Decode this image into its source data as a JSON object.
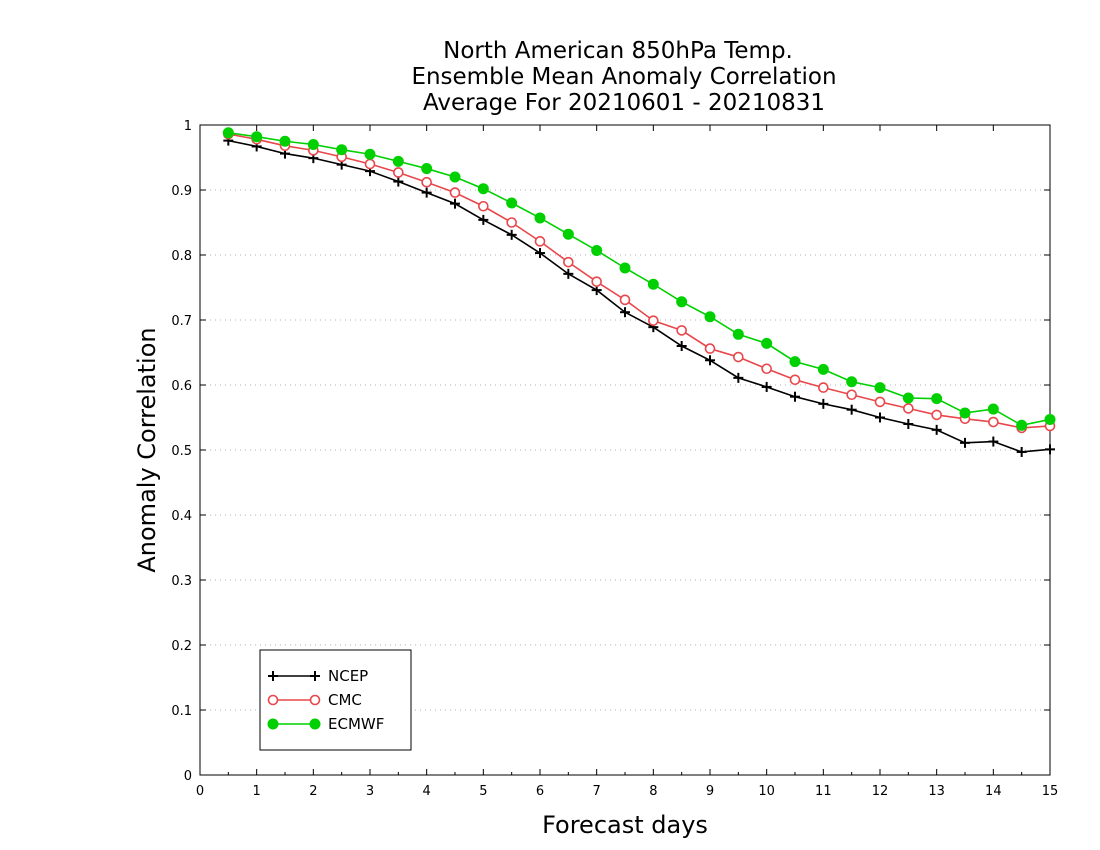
{
  "chart_data": {
    "type": "line",
    "title_lines": [
      "North American 850hPa Temp.",
      "Ensemble Mean Anomaly Correlation",
      "Average For 20210601 - 20210831"
    ],
    "xlabel": "Forecast days",
    "ylabel": "Anomaly Correlation",
    "xlim": [
      0,
      15
    ],
    "ylim": [
      0,
      1
    ],
    "x_ticks": [
      "0",
      "1",
      "2",
      "3",
      "4",
      "5",
      "6",
      "7",
      "8",
      "9",
      "10",
      "11",
      "12",
      "13",
      "14",
      "15"
    ],
    "y_ticks": [
      "0",
      "0.1",
      "0.2",
      "0.3",
      "0.4",
      "0.5",
      "0.6",
      "0.7",
      "0.8",
      "0.9",
      "1"
    ],
    "grid": "horizontal dotted",
    "legend_position": "bottom-left",
    "x": [
      0.5,
      1,
      1.5,
      2,
      2.5,
      3,
      3.5,
      4,
      4.5,
      5,
      5.5,
      6,
      6.5,
      7,
      7.5,
      8,
      8.5,
      9,
      9.5,
      10,
      10.5,
      11,
      11.5,
      12,
      12.5,
      13,
      13.5,
      14,
      14.5,
      15
    ],
    "series": [
      {
        "name": "NCEP",
        "color": "#000000",
        "marker": "plus",
        "values": [
          0.976,
          0.967,
          0.956,
          0.949,
          0.939,
          0.929,
          0.913,
          0.896,
          0.879,
          0.854,
          0.831,
          0.803,
          0.771,
          0.746,
          0.712,
          0.689,
          0.66,
          0.638,
          0.611,
          0.597,
          0.582,
          0.571,
          0.562,
          0.55,
          0.54,
          0.531,
          0.511,
          0.513,
          0.497,
          0.501
        ]
      },
      {
        "name": "CMC",
        "color": "#e8474b",
        "marker": "open-circle",
        "values": [
          0.986,
          0.978,
          0.968,
          0.961,
          0.951,
          0.94,
          0.927,
          0.912,
          0.896,
          0.875,
          0.85,
          0.821,
          0.789,
          0.759,
          0.731,
          0.699,
          0.684,
          0.656,
          0.643,
          0.625,
          0.608,
          0.596,
          0.585,
          0.574,
          0.564,
          0.554,
          0.548,
          0.543,
          0.534,
          0.537
        ]
      },
      {
        "name": "ECMWF",
        "color": "#00d000",
        "marker": "filled-circle",
        "values": [
          0.988,
          0.982,
          0.975,
          0.97,
          0.962,
          0.955,
          0.944,
          0.933,
          0.92,
          0.902,
          0.88,
          0.857,
          0.832,
          0.807,
          0.78,
          0.755,
          0.728,
          0.705,
          0.678,
          0.664,
          0.636,
          0.624,
          0.605,
          0.596,
          0.58,
          0.579,
          0.557,
          0.563,
          0.538,
          0.547
        ]
      }
    ]
  }
}
